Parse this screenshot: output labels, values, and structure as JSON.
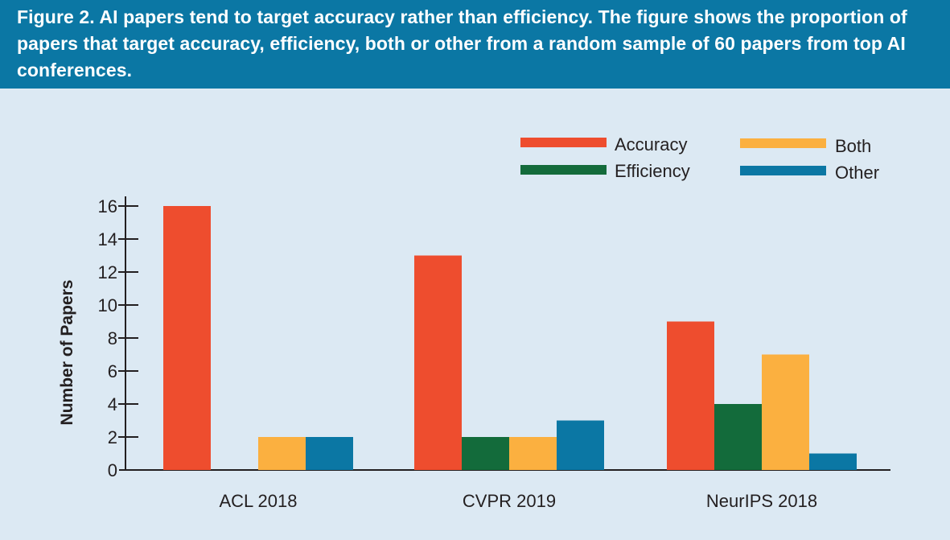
{
  "figure": {
    "label": "Figure 2.",
    "caption": "AI papers tend to target accuracy rather than efficiency. The figure shows the proportion of papers that target accuracy, efficiency, both or other from a random sample of 60 papers from top AI conferences."
  },
  "chart_data": {
    "type": "bar",
    "title": "",
    "xlabel": "",
    "ylabel": "Number of Papers",
    "ylim": [
      0,
      16
    ],
    "yticks": [
      0,
      2,
      4,
      6,
      8,
      10,
      12,
      14,
      16
    ],
    "grid": false,
    "legend_position": "top-right",
    "categories": [
      "ACL 2018",
      "CVPR 2019",
      "NeurIPS 2018"
    ],
    "series": [
      {
        "name": "Accuracy",
        "color": "#ee4d2e",
        "values": [
          16,
          13,
          9
        ]
      },
      {
        "name": "Efficiency",
        "color": "#136b3b",
        "values": [
          0,
          2,
          4
        ]
      },
      {
        "name": "Both",
        "color": "#fbb040",
        "values": [
          2,
          2,
          7
        ]
      },
      {
        "name": "Other",
        "color": "#0b77a4",
        "values": [
          2,
          3,
          1
        ]
      }
    ]
  }
}
